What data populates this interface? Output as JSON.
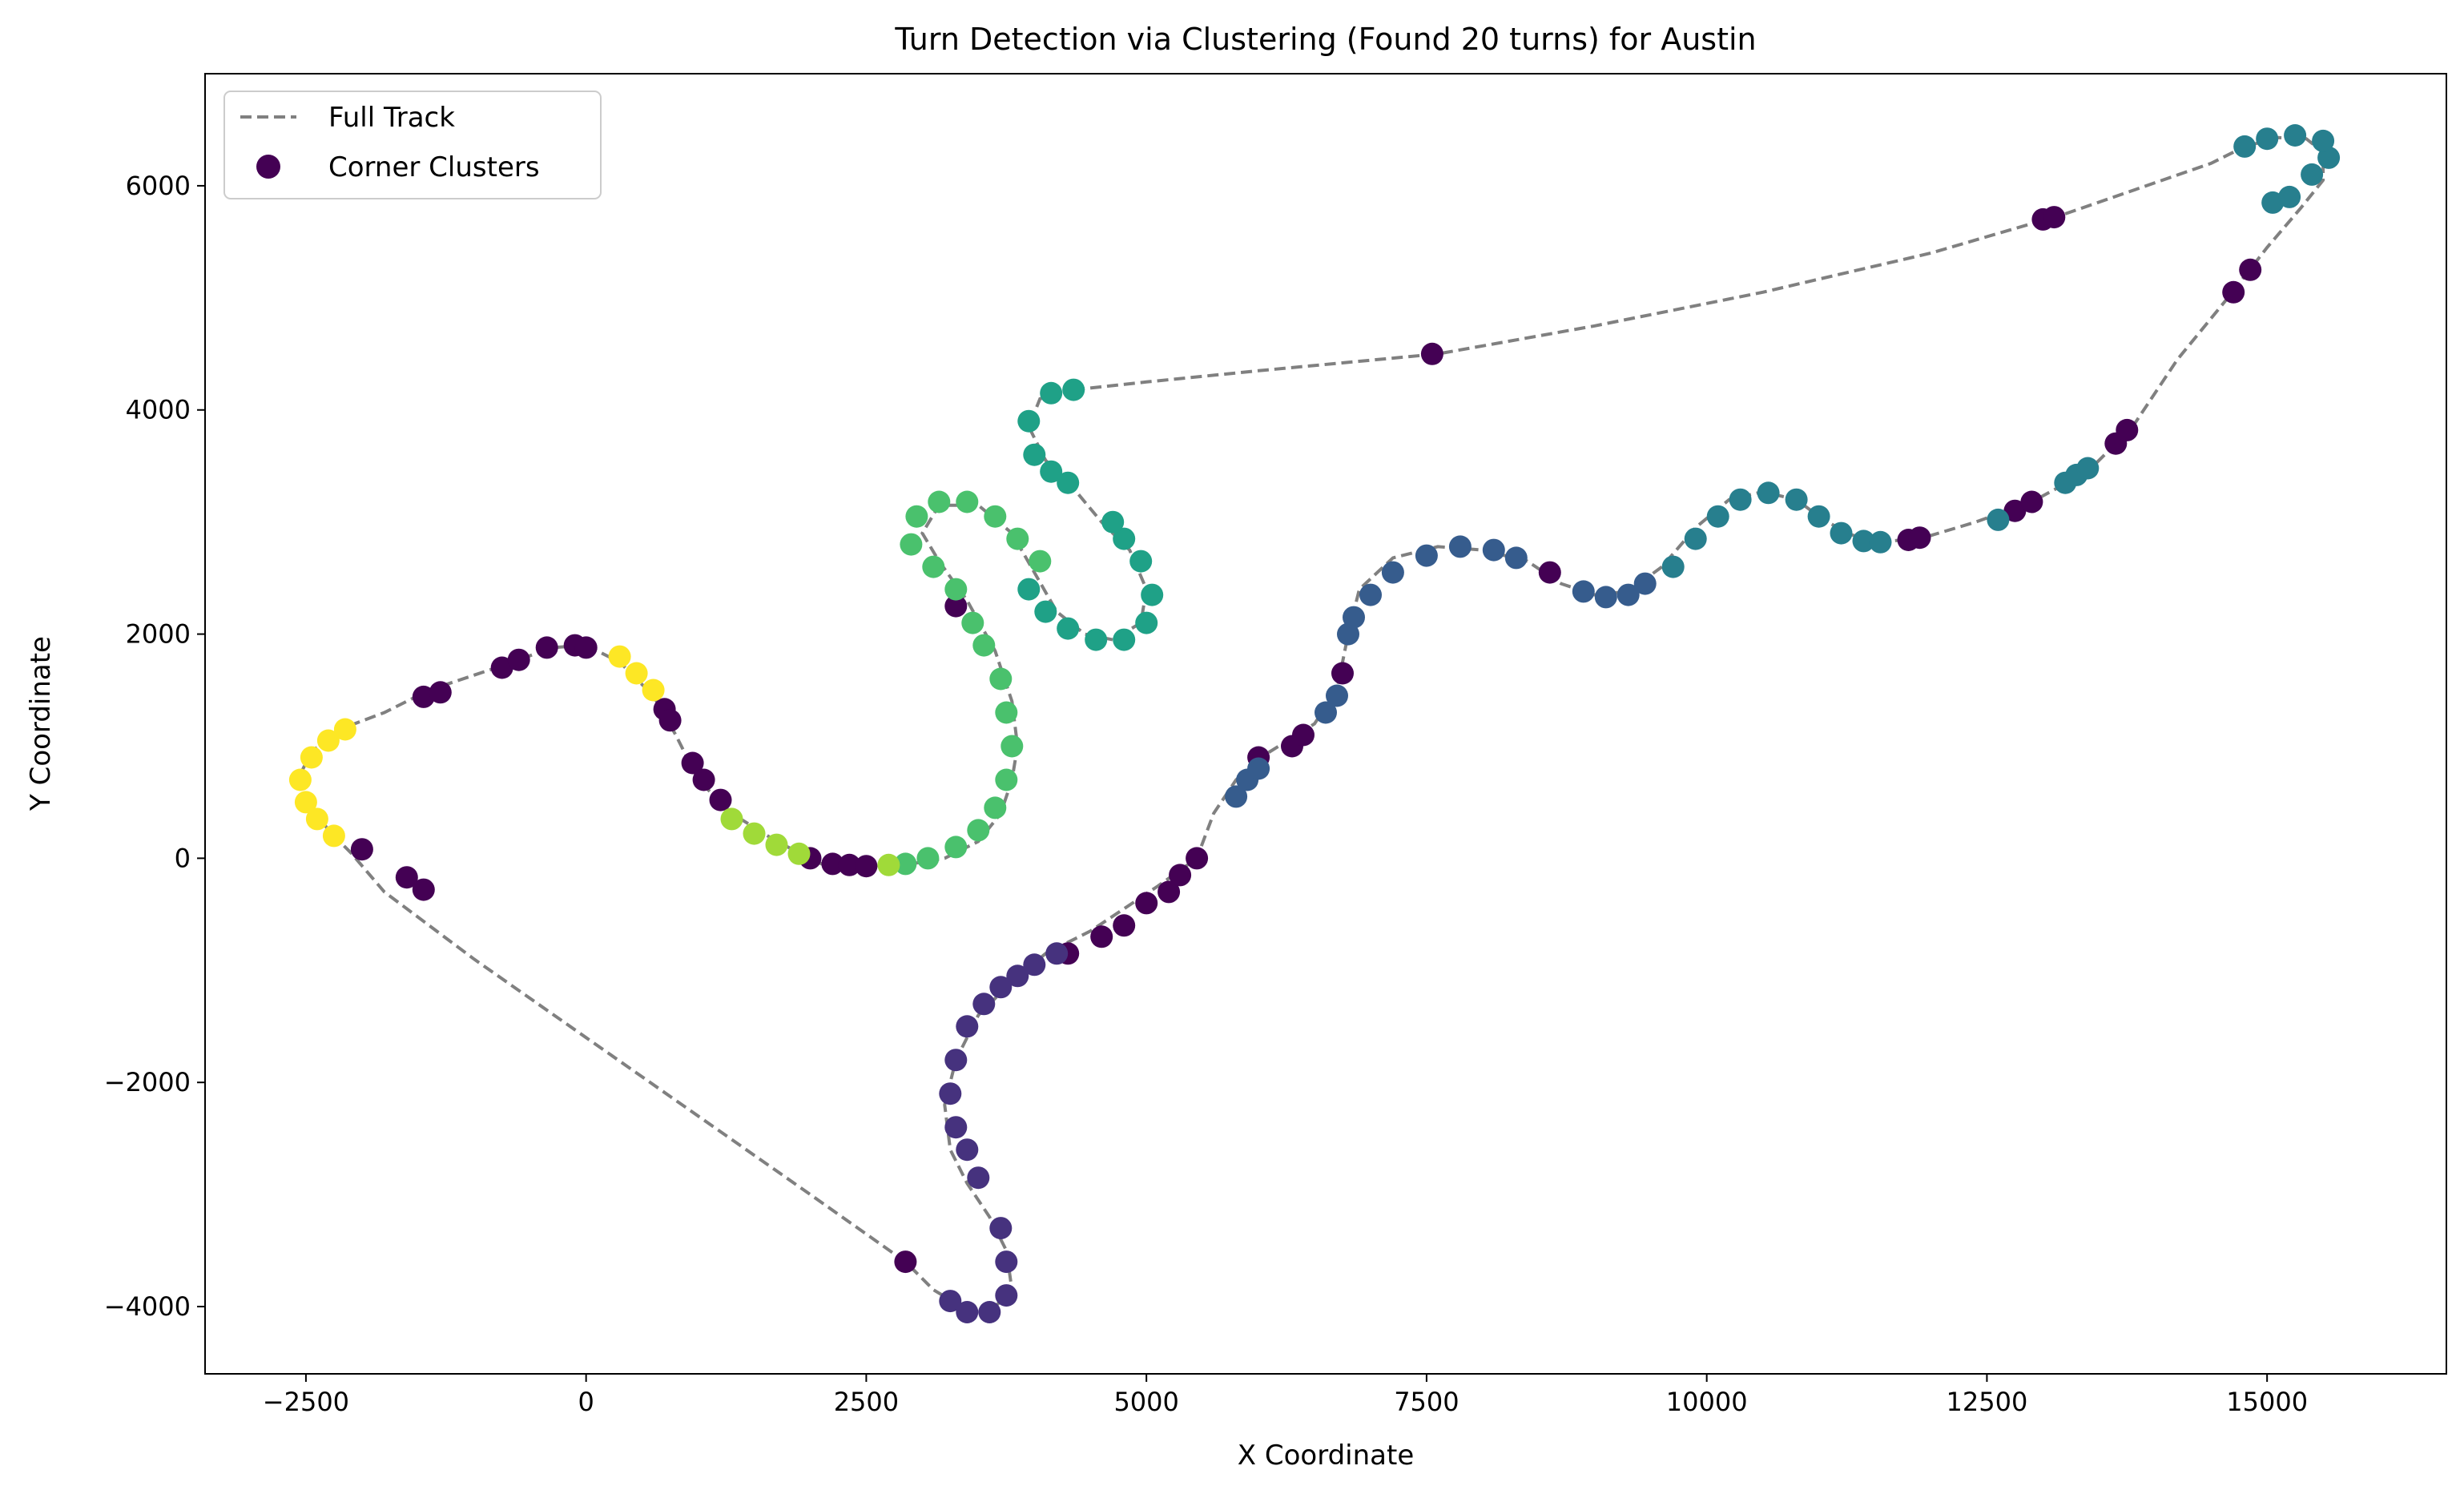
{
  "chart_data": {
    "type": "scatter",
    "title": "Turn Detection via Clustering (Found 20 turns) for Austin",
    "xlabel": "X Coordinate",
    "ylabel": "Y Coordinate",
    "xlim": [
      -3400,
      16600
    ],
    "ylim": [
      -4600,
      7000
    ],
    "xticks": [
      -2500,
      0,
      2500,
      5000,
      7500,
      10000,
      12500,
      15000
    ],
    "yticks": [
      -4000,
      -2000,
      0,
      2000,
      4000,
      6000
    ],
    "xtick_labels": [
      "−2500",
      "0",
      "2500",
      "5000",
      "7500",
      "10000",
      "12500",
      "15000"
    ],
    "ytick_labels": [
      "−4000",
      "−2000",
      "0",
      "2000",
      "4000",
      "6000"
    ],
    "grid": false,
    "legend": {
      "placement": "top-left",
      "entries": [
        {
          "label": "Full Track",
          "style": "dashed-line",
          "color": "#808080"
        },
        {
          "label": "Corner Clusters",
          "style": "marker",
          "color": "#440154"
        }
      ]
    },
    "track": {
      "name": "Full Track",
      "color": "#808080",
      "points": [
        [
          4350,
          4180
        ],
        [
          5000,
          4250
        ],
        [
          6000,
          4350
        ],
        [
          7600,
          4500
        ],
        [
          9000,
          4750
        ],
        [
          10500,
          5050
        ],
        [
          12000,
          5400
        ],
        [
          13200,
          5750
        ],
        [
          14500,
          6200
        ],
        [
          14800,
          6350
        ],
        [
          15100,
          6430
        ],
        [
          15350,
          6420
        ],
        [
          15500,
          6300
        ],
        [
          15500,
          6050
        ],
        [
          15300,
          5800
        ],
        [
          15000,
          5450
        ],
        [
          14650,
          5000
        ],
        [
          14200,
          4450
        ],
        [
          13800,
          3850
        ],
        [
          13400,
          3450
        ],
        [
          12900,
          3180
        ],
        [
          12400,
          3000
        ],
        [
          11900,
          2850
        ],
        [
          11500,
          2820
        ],
        [
          11250,
          2900
        ],
        [
          11000,
          3050
        ],
        [
          10800,
          3200
        ],
        [
          10500,
          3270
        ],
        [
          10200,
          3200
        ],
        [
          9900,
          2950
        ],
        [
          9600,
          2600
        ],
        [
          9300,
          2380
        ],
        [
          9000,
          2350
        ],
        [
          8700,
          2450
        ],
        [
          8400,
          2650
        ],
        [
          8000,
          2750
        ],
        [
          7600,
          2780
        ],
        [
          7200,
          2680
        ],
        [
          6900,
          2400
        ],
        [
          6800,
          2000
        ],
        [
          6700,
          1500
        ],
        [
          6500,
          1200
        ],
        [
          6100,
          950
        ],
        [
          5800,
          700
        ],
        [
          5600,
          400
        ],
        [
          5450,
          0
        ],
        [
          5100,
          -250
        ],
        [
          4800,
          -450
        ],
        [
          4500,
          -650
        ],
        [
          4100,
          -850
        ],
        [
          3800,
          -1100
        ],
        [
          3500,
          -1400
        ],
        [
          3300,
          -1800
        ],
        [
          3200,
          -2200
        ],
        [
          3250,
          -2600
        ],
        [
          3400,
          -2900
        ],
        [
          3600,
          -3200
        ],
        [
          3750,
          -3500
        ],
        [
          3800,
          -3850
        ],
        [
          3600,
          -4050
        ],
        [
          3350,
          -4000
        ],
        [
          3100,
          -3850
        ],
        [
          2850,
          -3600
        ],
        [
          2000,
          -3000
        ],
        [
          0,
          -1600
        ],
        [
          -1000,
          -900
        ],
        [
          -1800,
          -300
        ],
        [
          -2100,
          50
        ],
        [
          -2300,
          250
        ],
        [
          -2500,
          550
        ],
        [
          -2550,
          750
        ],
        [
          -2450,
          950
        ],
        [
          -2200,
          1150
        ],
        [
          -1800,
          1300
        ],
        [
          -1400,
          1500
        ],
        [
          -800,
          1700
        ],
        [
          -300,
          1880
        ],
        [
          0,
          1900
        ],
        [
          300,
          1750
        ],
        [
          600,
          1450
        ],
        [
          800,
          1100
        ],
        [
          1000,
          700
        ],
        [
          1300,
          400
        ],
        [
          1700,
          150
        ],
        [
          2100,
          -50
        ],
        [
          2500,
          -80
        ],
        [
          2900,
          -50
        ],
        [
          3200,
          0
        ],
        [
          3500,
          150
        ],
        [
          3700,
          400
        ],
        [
          3800,
          700
        ],
        [
          3850,
          1000
        ],
        [
          3800,
          1400
        ],
        [
          3650,
          1850
        ],
        [
          3400,
          2300
        ],
        [
          3150,
          2650
        ],
        [
          3000,
          2900
        ],
        [
          3150,
          3150
        ],
        [
          3500,
          3150
        ],
        [
          3800,
          2900
        ],
        [
          4000,
          2550
        ],
        [
          4200,
          2200
        ],
        [
          4450,
          2000
        ],
        [
          4700,
          1950
        ],
        [
          4950,
          2100
        ],
        [
          5000,
          2400
        ],
        [
          4850,
          2750
        ],
        [
          4600,
          3000
        ],
        [
          4350,
          3300
        ],
        [
          4100,
          3550
        ],
        [
          3950,
          3850
        ],
        [
          4050,
          4100
        ],
        [
          4350,
          4180
        ]
      ]
    },
    "corner_clusters": [
      {
        "color": "#440154",
        "points": [
          [
            -2000,
            80
          ],
          [
            -1600,
            -170
          ],
          [
            -1450,
            -280
          ],
          [
            -1450,
            1440
          ],
          [
            -1300,
            1480
          ],
          [
            -750,
            1700
          ],
          [
            -600,
            1770
          ],
          [
            -350,
            1880
          ],
          [
            -100,
            1900
          ],
          [
            0,
            1880
          ],
          [
            700,
            1330
          ],
          [
            750,
            1230
          ],
          [
            950,
            850
          ],
          [
            1050,
            700
          ],
          [
            1200,
            520
          ],
          [
            2000,
            0
          ],
          [
            2200,
            -50
          ],
          [
            2350,
            -60
          ],
          [
            2500,
            -70
          ],
          [
            2850,
            -3600
          ],
          [
            3300,
            2250
          ],
          [
            5000,
            -400
          ],
          [
            5200,
            -300
          ],
          [
            5450,
            0
          ],
          [
            5300,
            -150
          ],
          [
            4800,
            -600
          ],
          [
            4600,
            -700
          ],
          [
            4300,
            -850
          ],
          [
            6000,
            900
          ],
          [
            6300,
            1000
          ],
          [
            6400,
            1100
          ],
          [
            6750,
            1650
          ],
          [
            7550,
            4500
          ],
          [
            8600,
            2550
          ],
          [
            11800,
            2840
          ],
          [
            11900,
            2860
          ],
          [
            12750,
            3100
          ],
          [
            12900,
            3180
          ],
          [
            13000,
            5700
          ],
          [
            13100,
            5720
          ],
          [
            13650,
            3700
          ],
          [
            13750,
            3820
          ],
          [
            14700,
            5050
          ],
          [
            14850,
            5250
          ]
        ]
      },
      {
        "color": "#46327e",
        "points": [
          [
            3250,
            -3950
          ],
          [
            3400,
            -4050
          ],
          [
            3600,
            -4050
          ],
          [
            3750,
            -3900
          ],
          [
            3750,
            -3600
          ],
          [
            3700,
            -3300
          ],
          [
            3500,
            -2850
          ],
          [
            3400,
            -2600
          ],
          [
            3300,
            -2400
          ],
          [
            3250,
            -2100
          ],
          [
            3300,
            -1800
          ],
          [
            3400,
            -1500
          ],
          [
            3550,
            -1300
          ],
          [
            3700,
            -1150
          ],
          [
            3850,
            -1050
          ],
          [
            4000,
            -950
          ],
          [
            4200,
            -850
          ]
        ]
      },
      {
        "color": "#365c8d",
        "points": [
          [
            5800,
            550
          ],
          [
            5900,
            700
          ],
          [
            6000,
            800
          ],
          [
            6600,
            1300
          ],
          [
            6700,
            1450
          ],
          [
            6800,
            2000
          ],
          [
            6850,
            2150
          ],
          [
            7000,
            2350
          ],
          [
            7200,
            2550
          ],
          [
            7500,
            2700
          ],
          [
            7800,
            2780
          ],
          [
            8100,
            2750
          ],
          [
            8300,
            2680
          ],
          [
            8900,
            2380
          ],
          [
            9100,
            2330
          ],
          [
            9300,
            2350
          ],
          [
            9450,
            2450
          ]
        ]
      },
      {
        "color": "#277f8e",
        "points": [
          [
            9700,
            2600
          ],
          [
            9900,
            2850
          ],
          [
            10100,
            3050
          ],
          [
            10300,
            3200
          ],
          [
            10550,
            3260
          ],
          [
            10800,
            3200
          ],
          [
            11000,
            3050
          ],
          [
            11200,
            2900
          ],
          [
            11400,
            2830
          ],
          [
            11550,
            2820
          ],
          [
            12600,
            3020
          ],
          [
            13200,
            3350
          ],
          [
            13300,
            3420
          ],
          [
            13400,
            3480
          ],
          [
            15050,
            5850
          ],
          [
            15200,
            5900
          ],
          [
            15400,
            6100
          ],
          [
            15550,
            6250
          ],
          [
            15500,
            6400
          ],
          [
            15250,
            6450
          ],
          [
            15000,
            6420
          ],
          [
            14800,
            6350
          ]
        ]
      },
      {
        "color": "#1fa187",
        "points": [
          [
            4350,
            4180
          ],
          [
            4150,
            4150
          ],
          [
            3950,
            3900
          ],
          [
            4000,
            3600
          ],
          [
            4150,
            3450
          ],
          [
            4300,
            3350
          ],
          [
            3950,
            2400
          ],
          [
            4100,
            2200
          ],
          [
            4300,
            2050
          ],
          [
            4550,
            1950
          ],
          [
            4800,
            1950
          ],
          [
            5000,
            2100
          ],
          [
            5050,
            2350
          ],
          [
            4950,
            2650
          ],
          [
            4800,
            2850
          ],
          [
            4700,
            3000
          ]
        ]
      },
      {
        "color": "#4ac16d",
        "points": [
          [
            2850,
            -50
          ],
          [
            3050,
            0
          ],
          [
            3300,
            100
          ],
          [
            3500,
            250
          ],
          [
            3650,
            450
          ],
          [
            3750,
            700
          ],
          [
            3800,
            1000
          ],
          [
            3750,
            1300
          ],
          [
            3700,
            1600
          ],
          [
            3550,
            1900
          ],
          [
            3450,
            2100
          ],
          [
            3300,
            2400
          ],
          [
            3100,
            2600
          ],
          [
            2900,
            2800
          ],
          [
            2950,
            3050
          ],
          [
            3150,
            3180
          ],
          [
            3400,
            3180
          ],
          [
            3650,
            3050
          ],
          [
            3850,
            2850
          ],
          [
            4050,
            2650
          ]
        ]
      },
      {
        "color": "#a0da39",
        "points": [
          [
            1300,
            350
          ],
          [
            1500,
            220
          ],
          [
            1700,
            120
          ],
          [
            1900,
            40
          ],
          [
            2700,
            -60
          ]
        ]
      },
      {
        "color": "#fde725",
        "points": [
          [
            300,
            1800
          ],
          [
            450,
            1650
          ],
          [
            600,
            1500
          ],
          [
            -2150,
            1150
          ],
          [
            -2300,
            1050
          ],
          [
            -2450,
            900
          ],
          [
            -2550,
            700
          ],
          [
            -2500,
            500
          ],
          [
            -2400,
            350
          ],
          [
            -2250,
            200
          ]
        ]
      }
    ]
  }
}
